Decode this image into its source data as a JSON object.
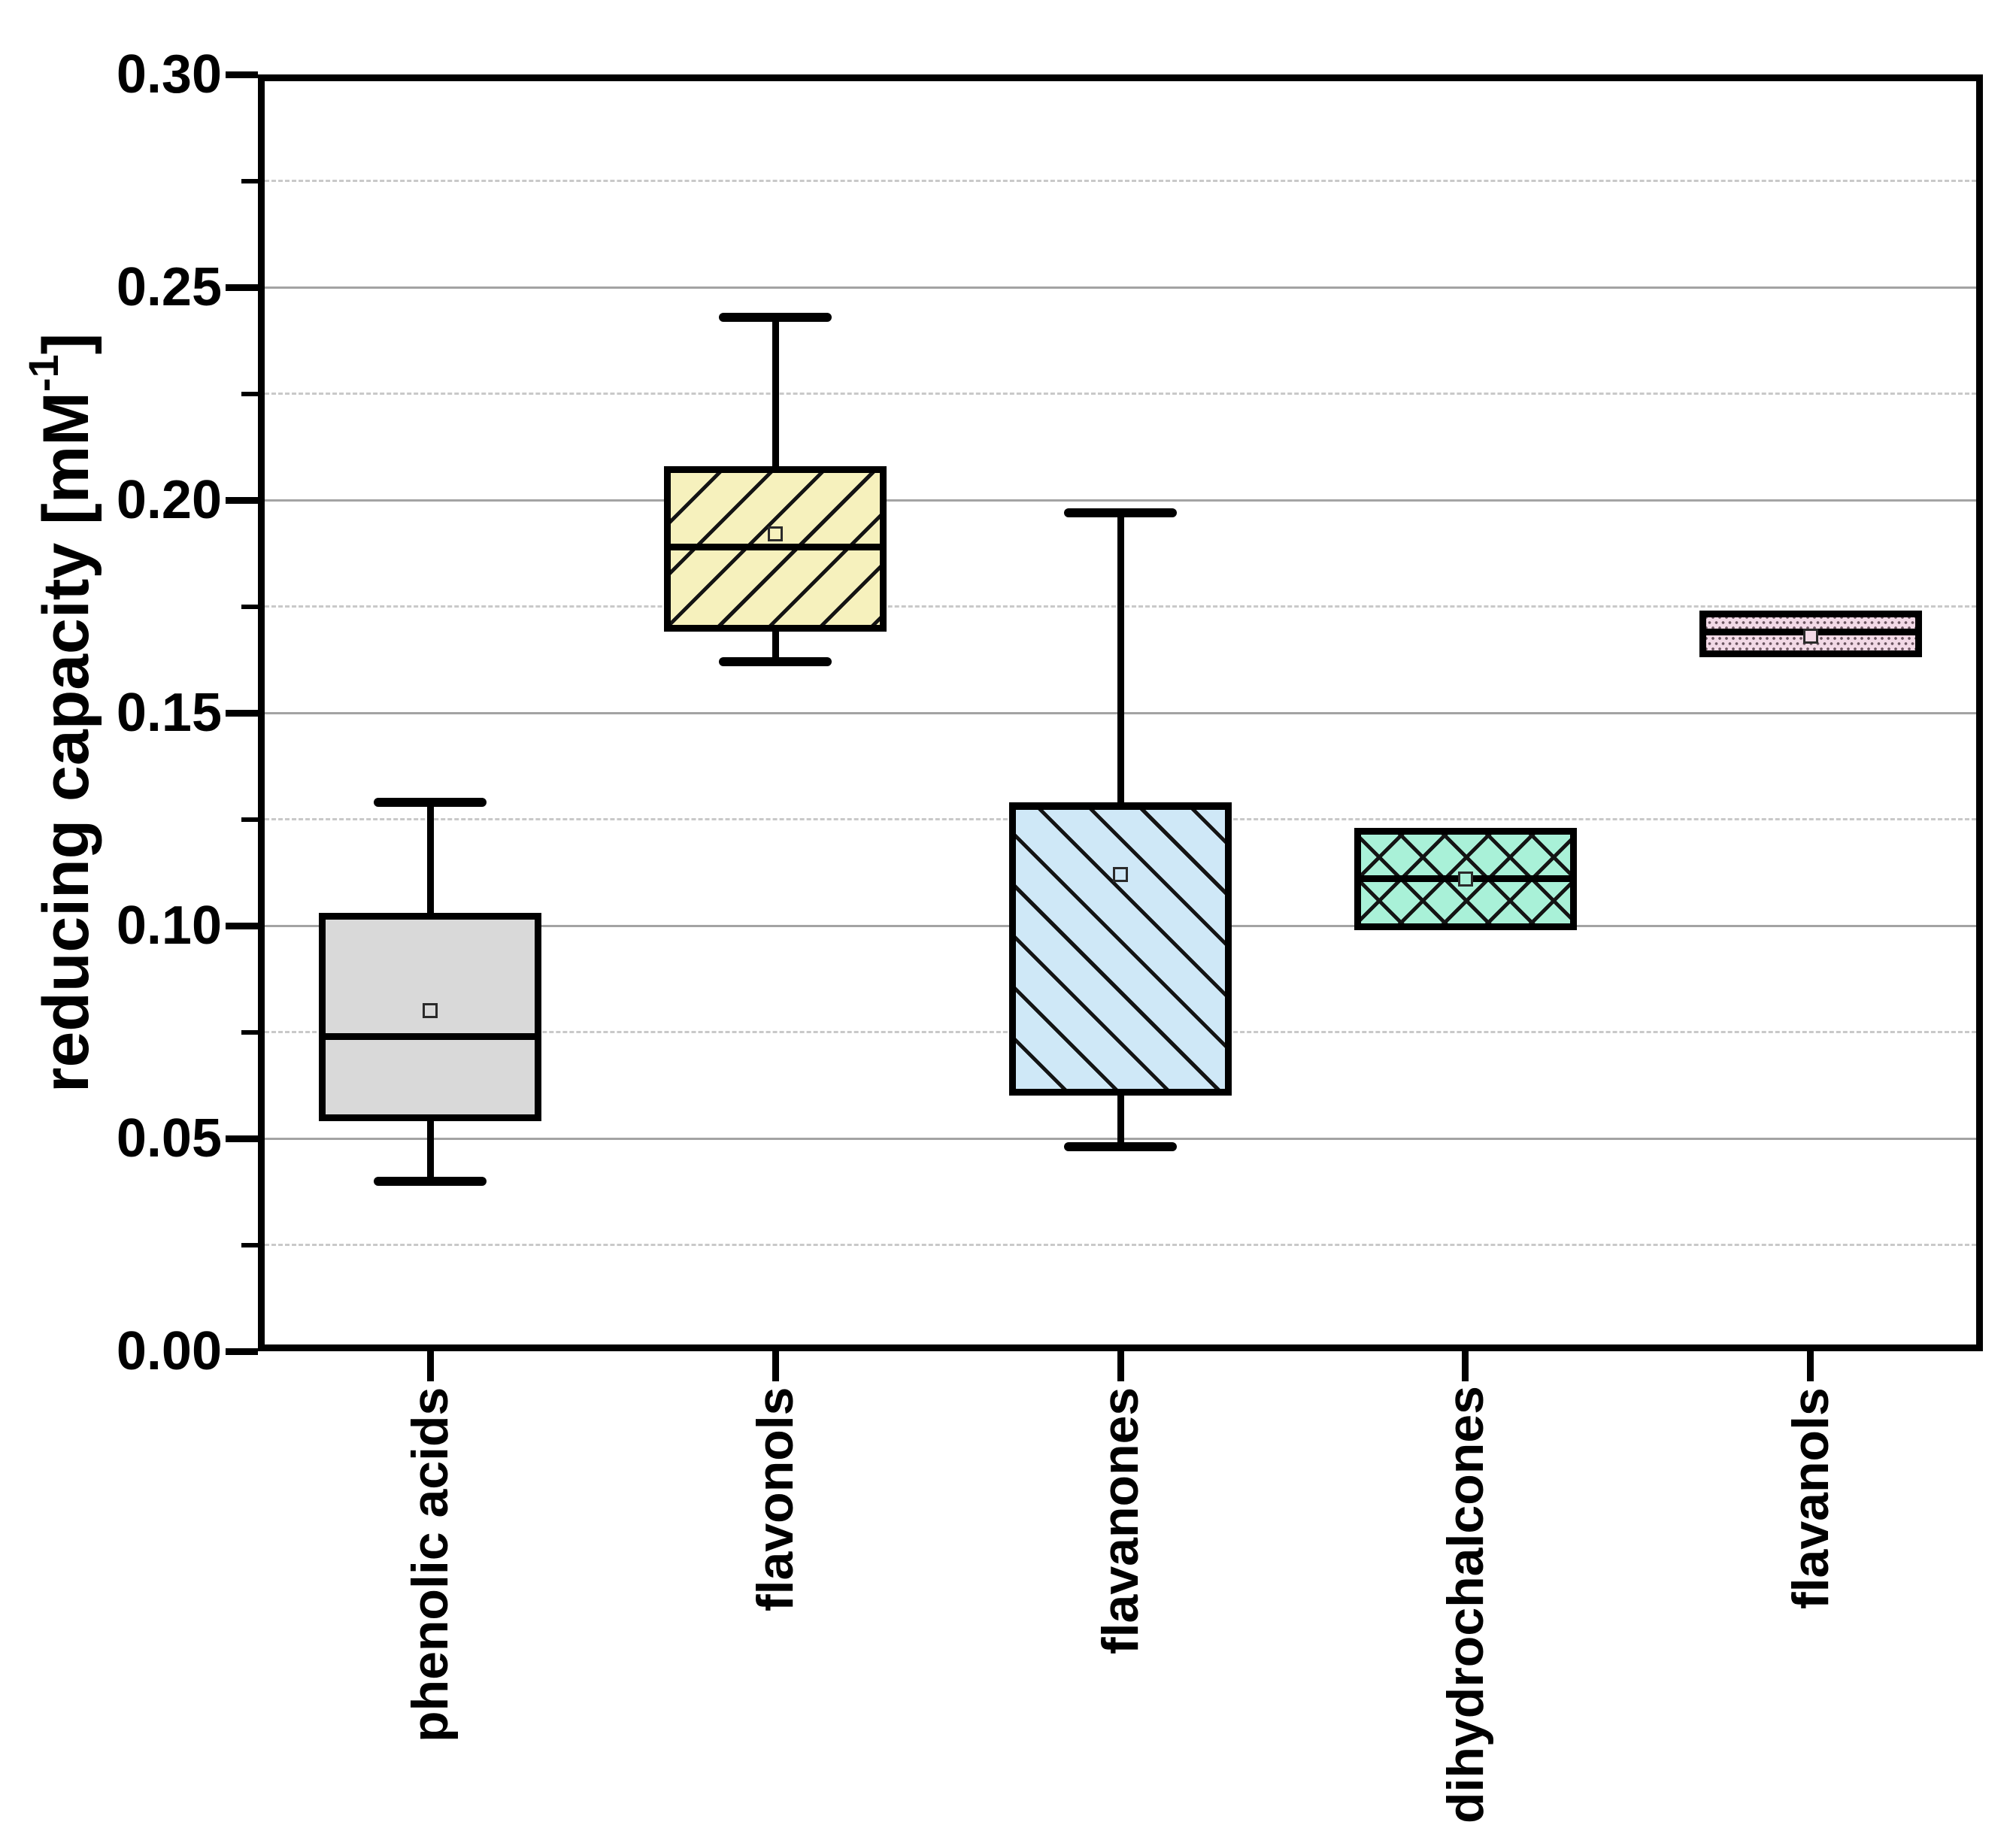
{
  "figure": {
    "background": "#ffffff",
    "frame_color": "#000000",
    "grid_major_color": "#a3a3a3",
    "grid_minor_color": "#c9c9c9"
  },
  "y_axis": {
    "title_pre": "reducing capacity [mM",
    "title_sup": "-1",
    "title_post": "]",
    "tick_labels": [
      "0.00",
      "0.05",
      "0.10",
      "0.15",
      "0.20",
      "0.25",
      "0.30"
    ],
    "tick_values": [
      0.0,
      0.05,
      0.1,
      0.15,
      0.2,
      0.25,
      0.3
    ],
    "minor_tick_values": [
      0.025,
      0.075,
      0.125,
      0.175,
      0.225,
      0.275
    ]
  },
  "chart_data": {
    "type": "box",
    "title": "",
    "xlabel": "",
    "ylabel": "reducing capacity [mM^-1]",
    "ylim": [
      0.0,
      0.3
    ],
    "grid": {
      "major": [
        0.05,
        0.1,
        0.15,
        0.2,
        0.25
      ],
      "minor": [
        0.025,
        0.075,
        0.125,
        0.175,
        0.225,
        0.275
      ]
    },
    "legend_position": "none",
    "categories": [
      "phenolic acids",
      "flavonols",
      "flavanones",
      "dihydrochalcones",
      "flavanols"
    ],
    "series": [
      {
        "name": "phenolic acids",
        "whisker_low": 0.04,
        "q1": 0.054,
        "median": 0.074,
        "mean": 0.08,
        "q3": 0.103,
        "whisker_high": 0.129,
        "fill": "#d9d9d9",
        "pattern": "none"
      },
      {
        "name": "flavonols",
        "whisker_low": 0.162,
        "q1": 0.169,
        "median": 0.189,
        "mean": 0.192,
        "q3": 0.208,
        "whisker_high": 0.243,
        "fill": "#f6f1bd",
        "pattern": "diag-up"
      },
      {
        "name": "flavanones",
        "whisker_low": 0.048,
        "q1": 0.06,
        "median": 0.128,
        "mean": 0.112,
        "q3": 0.129,
        "whisker_high": 0.197,
        "fill": "#cfe8f7",
        "pattern": "diag-down"
      },
      {
        "name": "dihydrochalcones",
        "whisker_low": null,
        "q1": 0.099,
        "median": 0.111,
        "mean": 0.111,
        "q3": 0.123,
        "whisker_high": null,
        "fill": "#a9f1d8",
        "pattern": "cross"
      },
      {
        "name": "flavanols",
        "whisker_low": null,
        "q1": 0.163,
        "median": 0.169,
        "mean": 0.168,
        "q3": 0.174,
        "whisker_high": null,
        "fill": "#f2d9e6",
        "pattern": "dots"
      }
    ]
  }
}
